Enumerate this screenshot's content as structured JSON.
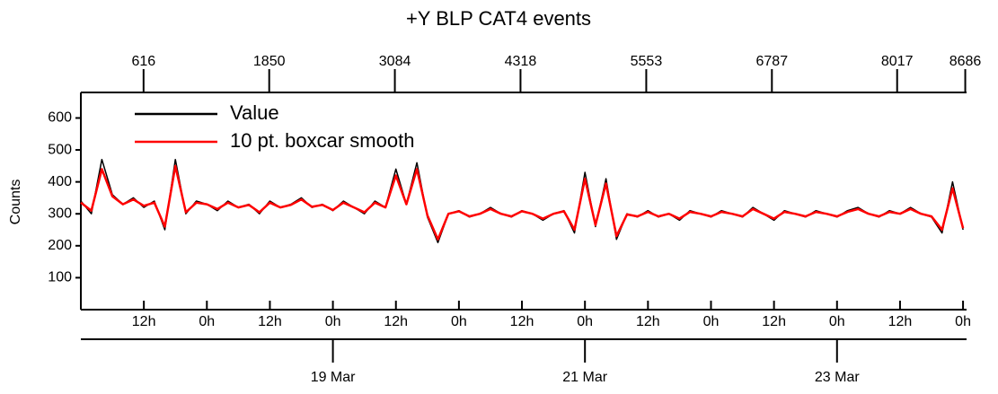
{
  "chart_data": {
    "type": "line",
    "title": "+Y BLP CAT4 events",
    "ylabel": "Counts",
    "x": [
      0,
      2,
      4,
      6,
      8,
      10,
      12,
      14,
      16,
      18,
      20,
      22,
      24,
      26,
      28,
      30,
      32,
      34,
      36,
      38,
      40,
      42,
      44,
      46,
      48,
      50,
      52,
      54,
      56,
      58,
      60,
      62,
      64,
      66,
      68,
      70,
      72,
      74,
      76,
      78,
      80,
      82,
      84,
      86,
      88,
      90,
      92,
      94,
      96,
      98,
      100,
      102,
      104,
      106,
      108,
      110,
      112,
      114,
      116,
      118,
      120,
      122,
      124,
      126,
      128,
      130,
      132,
      134,
      136,
      138,
      140,
      142,
      144,
      146,
      148,
      150,
      152,
      154,
      156,
      158,
      160,
      162,
      164,
      166,
      168
    ],
    "series": [
      {
        "name": "Value",
        "color": "#000000",
        "values": [
          340,
          300,
          470,
          360,
          330,
          350,
          320,
          340,
          250,
          470,
          300,
          340,
          330,
          310,
          340,
          320,
          330,
          300,
          340,
          320,
          330,
          350,
          320,
          330,
          310,
          340,
          320,
          300,
          340,
          320,
          440,
          330,
          460,
          290,
          210,
          300,
          310,
          290,
          300,
          320,
          300,
          290,
          310,
          300,
          280,
          300,
          310,
          240,
          430,
          260,
          410,
          220,
          300,
          290,
          310,
          290,
          300,
          280,
          310,
          300,
          290,
          310,
          300,
          290,
          320,
          300,
          280,
          310,
          300,
          290,
          310,
          300,
          290,
          310,
          320,
          300,
          290,
          310,
          300,
          320,
          300,
          290,
          240,
          400,
          250
        ]
      },
      {
        "name": "10 pt. boxcar smooth",
        "color": "#ff0000",
        "values": [
          335,
          310,
          440,
          355,
          330,
          345,
          325,
          335,
          260,
          450,
          305,
          335,
          330,
          315,
          335,
          320,
          328,
          305,
          335,
          320,
          328,
          345,
          322,
          328,
          312,
          335,
          320,
          305,
          335,
          320,
          420,
          330,
          440,
          295,
          220,
          300,
          308,
          292,
          300,
          315,
          300,
          292,
          308,
          300,
          285,
          300,
          308,
          250,
          410,
          265,
          395,
          230,
          298,
          292,
          306,
          292,
          300,
          285,
          306,
          300,
          292,
          306,
          300,
          292,
          315,
          300,
          285,
          306,
          300,
          292,
          306,
          300,
          292,
          306,
          315,
          300,
          292,
          306,
          300,
          315,
          300,
          292,
          250,
          380,
          255
        ]
      }
    ],
    "xlim": [
      0,
      168.5
    ],
    "xticks": [
      {
        "value": 12,
        "label": "12h"
      },
      {
        "value": 24,
        "label": "0h"
      },
      {
        "value": 36,
        "label": "12h"
      },
      {
        "value": 48,
        "label": "0h"
      },
      {
        "value": 60,
        "label": "12h"
      },
      {
        "value": 72,
        "label": "0h"
      },
      {
        "value": 84,
        "label": "12h"
      },
      {
        "value": 96,
        "label": "0h"
      },
      {
        "value": 108,
        "label": "12h"
      },
      {
        "value": 120,
        "label": "0h"
      },
      {
        "value": 132,
        "label": "12h"
      },
      {
        "value": 144,
        "label": "0h"
      },
      {
        "value": 156,
        "label": "12h"
      },
      {
        "value": 168,
        "label": "0h"
      }
    ],
    "date_ticks": [
      {
        "value": 48,
        "label": "19 Mar"
      },
      {
        "value": 96,
        "label": "21 Mar"
      },
      {
        "value": 144,
        "label": "23 Mar"
      }
    ],
    "x2lim": [
      0,
      8690
    ],
    "x2ticks": [
      616,
      1850,
      3084,
      4318,
      5553,
      6787,
      8017,
      8686
    ],
    "ylim": [
      0,
      680
    ],
    "yticks": [
      100,
      200,
      300,
      400,
      500,
      600
    ],
    "legend": "upper left"
  }
}
